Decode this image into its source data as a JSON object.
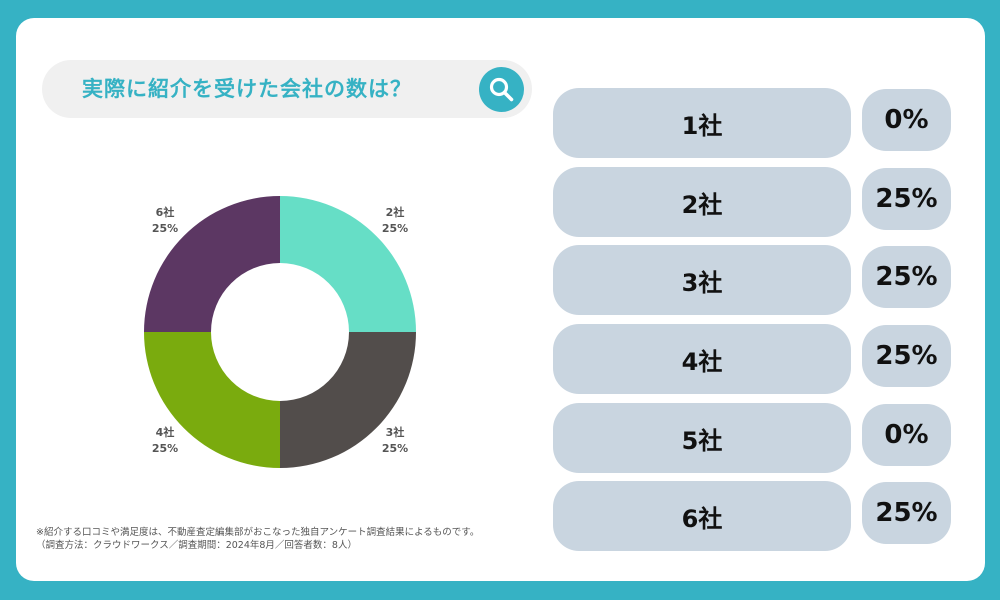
{
  "search": {
    "title": "実際に紹介を受けた会社の数は？",
    "icon": "search-icon"
  },
  "colors": {
    "frame": "#36b2c4",
    "row_bg": "#c9d5e0"
  },
  "chart_data": {
    "type": "pie",
    "donut": true,
    "title": "",
    "categories": [
      "1社",
      "2社",
      "3社",
      "4社",
      "5社",
      "6社"
    ],
    "values": [
      0,
      25,
      25,
      25,
      0,
      25
    ],
    "value_labels": [
      "0%",
      "25%",
      "25%",
      "25%",
      "0%",
      "25%"
    ],
    "colors": [
      "#cccccc",
      "#66dec6",
      "#524d4b",
      "#7aab0e",
      "#cccccc",
      "#5c3763"
    ],
    "legend": "right"
  },
  "footnote": {
    "line1": "※紹介する口コミや満足度は、不動産査定編集部がおこなった独自アンケート調査結果によるものです。",
    "line2": "（調査方法：クラウドワークス／調査期間：2024年8月／回答者数：8人）"
  }
}
